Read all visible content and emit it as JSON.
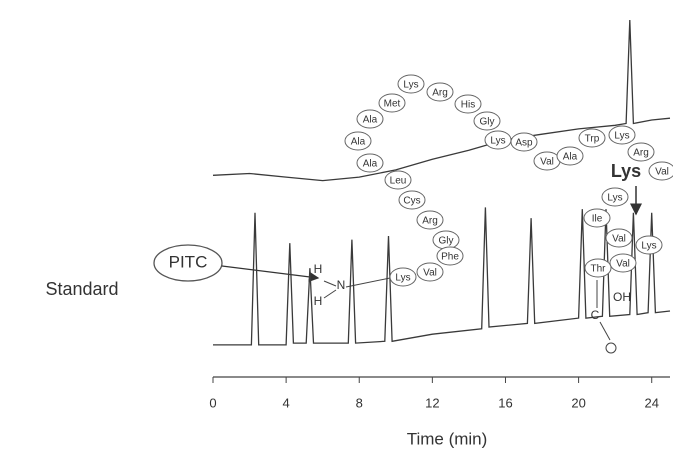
{
  "chart_data": {
    "type": "line",
    "xlabel": "Time (min)",
    "xlim": [
      0,
      25
    ],
    "xticks": [
      0,
      4,
      8,
      12,
      16,
      20,
      24
    ],
    "ylim": [
      0,
      200
    ],
    "series": [
      {
        "color": "#3a3a3a",
        "x": [
          0,
          2.1,
          2.3,
          2.5,
          4.0,
          4.2,
          4.4,
          5.1,
          5.3,
          5.5,
          7.4,
          7.6,
          7.8,
          9.4,
          9.6,
          9.8,
          12,
          14.7,
          14.9,
          15.1,
          17.2,
          17.4,
          17.6,
          20,
          20.2,
          20.4,
          21.3,
          21.5,
          21.7,
          22.8,
          23,
          23.2,
          23.8,
          24,
          24.2,
          25
        ],
        "values": [
          18,
          18,
          92,
          18,
          18,
          75,
          19,
          19,
          61,
          19,
          19,
          77,
          19,
          20,
          79,
          20,
          24,
          27,
          95,
          28,
          30,
          89,
          30,
          33,
          94,
          33,
          34,
          94,
          34,
          35,
          92,
          35,
          36,
          92,
          36,
          37
        ]
      },
      {
        "color": "#3a3a3a",
        "x": [
          0,
          2,
          4,
          6,
          8,
          10,
          12,
          14,
          16,
          18,
          20,
          22,
          22.6,
          22.8,
          23.0,
          24,
          25
        ],
        "values": [
          113,
          114,
          112,
          110,
          112,
          116,
          122,
          127,
          133,
          136,
          139,
          141,
          142,
          200,
          142,
          144,
          145
        ]
      }
    ],
    "annotations": [
      "Standard",
      "PITC",
      "Lys",
      "H",
      "H",
      "N",
      "C",
      "OH"
    ],
    "residues": [
      "Lys",
      "Arg",
      "His",
      "Gly",
      "Met",
      "Ala",
      "Ala",
      "Ala",
      "Leu",
      "Cys",
      "Arg",
      "Gly",
      "Phe",
      "Val",
      "Lys",
      "Lys",
      "Asp",
      "Val",
      "Ala",
      "Trp",
      "Lys",
      "Arg",
      "Val",
      "Lys",
      "Ile",
      "Val",
      "Val",
      "Thr",
      "Lys"
    ]
  }
}
